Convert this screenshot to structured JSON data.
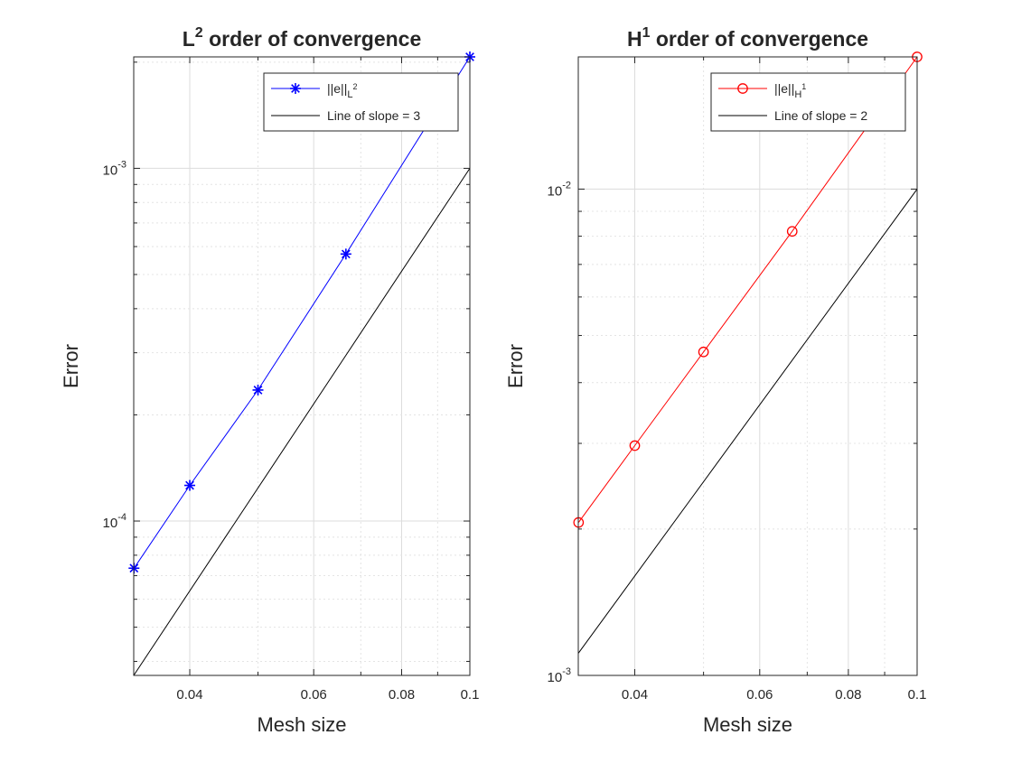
{
  "figure": {
    "colors": {
      "axis": "#262626",
      "grid": "#dcdcdc",
      "background": "#ffffff"
    }
  },
  "chart_data": [
    {
      "type": "line",
      "scale": "loglog",
      "title_main": "L",
      "title_sup": "2",
      "title_rest": " order of convergence",
      "title": "L^2 order of convergence",
      "xlabel": "Mesh size",
      "ylabel": "Error",
      "xlim": [
        0.0333,
        0.1
      ],
      "ylim": [
        3.65e-05,
        0.00207
      ],
      "xticks": [
        {
          "value": 0.04,
          "label": "0.04"
        },
        {
          "value": 0.06,
          "label": "0.06"
        },
        {
          "value": 0.08,
          "label": "0.08"
        },
        {
          "value": 0.1,
          "label": "0.1"
        }
      ],
      "yticks": [
        {
          "value": 0.0001,
          "base": "10",
          "exp": "-4"
        },
        {
          "value": 0.001,
          "base": "10",
          "exp": "-3"
        }
      ],
      "legend_position": "top-right",
      "series": [
        {
          "name": "||e||_{L^2}",
          "legend_main": "||e||",
          "legend_sub": "L",
          "legend_sup": "2",
          "color": "#0000ff",
          "marker": "asterisk",
          "x": [
            0.03333,
            0.04,
            0.05,
            0.06667,
            0.1
          ],
          "y": [
            7.35e-05,
            0.0001262,
            0.0002352,
            0.0005715,
            0.00207
          ]
        },
        {
          "name": "Line of slope = 3",
          "legend_main": "Line of slope = 3",
          "color": "#000000",
          "marker": "none",
          "x": [
            0.0333,
            0.1
          ],
          "y": [
            3.65e-05,
            0.001
          ]
        }
      ]
    },
    {
      "type": "line",
      "scale": "loglog",
      "title_main": "H",
      "title_sup": "1",
      "title_rest": " order of convergence",
      "title": "H^1 order of convergence",
      "xlabel": "Mesh size",
      "ylabel": "Error",
      "xlim": [
        0.0333,
        0.1
      ],
      "ylim": [
        0.001,
        0.0187
      ],
      "xticks": [
        {
          "value": 0.04,
          "label": "0.04"
        },
        {
          "value": 0.06,
          "label": "0.06"
        },
        {
          "value": 0.08,
          "label": "0.08"
        },
        {
          "value": 0.1,
          "label": "0.1"
        }
      ],
      "yticks": [
        {
          "value": 0.001,
          "base": "10",
          "exp": "-3"
        },
        {
          "value": 0.01,
          "base": "10",
          "exp": "-2"
        }
      ],
      "legend_position": "top-right",
      "series": [
        {
          "name": "||e||_{H^1}",
          "legend_main": "||e||",
          "legend_sub": "H",
          "legend_sup": "1",
          "color": "#ff0000",
          "marker": "circle",
          "x": [
            0.03333,
            0.04,
            0.05,
            0.06667,
            0.1
          ],
          "y": [
            0.002063,
            0.002968,
            0.004625,
            0.008186,
            0.0187
          ]
        },
        {
          "name": "Line of slope = 2",
          "legend_main": "Line of slope = 2",
          "color": "#000000",
          "marker": "none",
          "x": [
            0.0333,
            0.1
          ],
          "y": [
            0.00111,
            0.01
          ]
        }
      ]
    }
  ]
}
